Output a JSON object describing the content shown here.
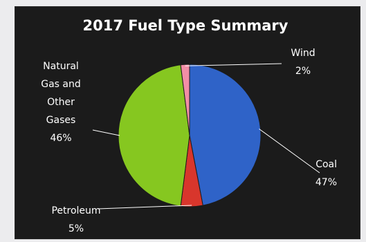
{
  "chart_data": {
    "type": "pie",
    "title": "2017 Fuel Type Summary",
    "slices": [
      {
        "name": "Coal",
        "value": 47,
        "label": "47%",
        "color": "#2f63c8",
        "label_lines": [
          "Coal"
        ]
      },
      {
        "name": "Petroleum",
        "value": 5,
        "label": "5%",
        "color": "#d8362c",
        "label_lines": [
          "Petroleum"
        ]
      },
      {
        "name": "Natural Gas and Other Gases",
        "value": 46,
        "label": "46%",
        "color": "#86c720",
        "label_lines": [
          "Natural",
          "Gas and",
          "Other",
          "Gases"
        ]
      },
      {
        "name": "Wind",
        "value": 2,
        "label": "2%",
        "color": "#f28ea6",
        "label_lines": [
          "Wind"
        ]
      }
    ],
    "background": "#1b1b1b",
    "legend": "none"
  }
}
